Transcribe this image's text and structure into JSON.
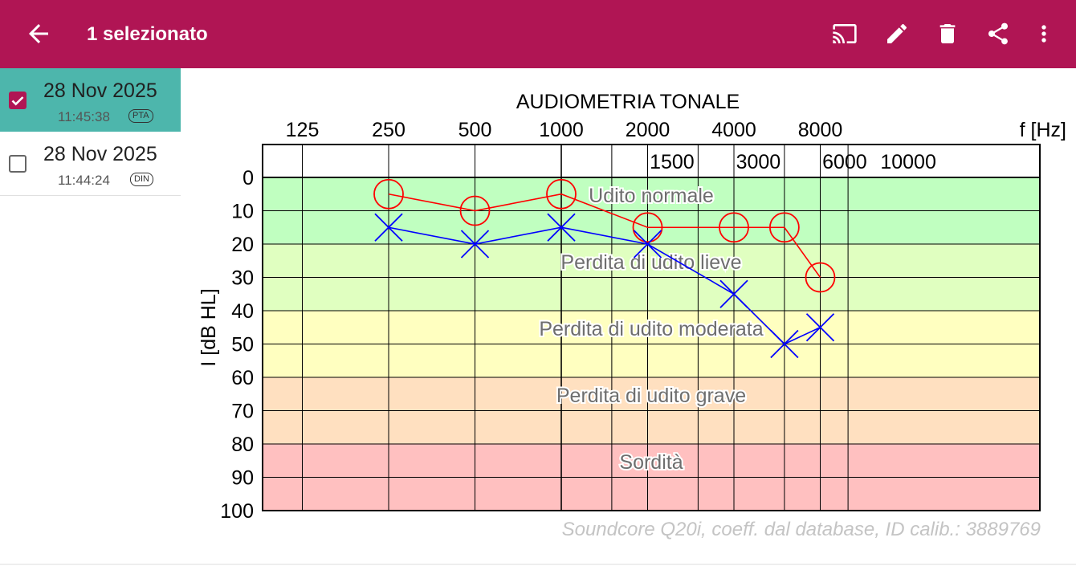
{
  "appbar": {
    "title": "1 selezionato",
    "color": "#b01554",
    "icons": [
      "arrow-back-icon",
      "cast-icon",
      "edit-icon",
      "delete-icon",
      "share-icon",
      "more-vert-icon"
    ]
  },
  "list": {
    "items": [
      {
        "date": "28 Nov 2025",
        "time": "11:45:38",
        "badge": "PTA",
        "selected": true
      },
      {
        "date": "28 Nov 2025",
        "time": "11:44:24",
        "badge": "DIN",
        "selected": false
      }
    ]
  },
  "chart_data": {
    "type": "line",
    "title": "AUDIOMETRIA TONALE",
    "xlabel": "f [Hz]",
    "ylabel": "I [dB HL]",
    "x_scale": "log",
    "y_inverted": true,
    "ylim": [
      0,
      100
    ],
    "top_ticks": [
      "125",
      "250",
      "500",
      "1000",
      "2000",
      "4000",
      "8000"
    ],
    "bottom_ticks": [
      "1500",
      "3000",
      "6000",
      "10000"
    ],
    "y_ticks": [
      "0",
      "10",
      "20",
      "30",
      "40",
      "50",
      "60",
      "70",
      "80",
      "90",
      "100"
    ],
    "zones": [
      {
        "label": "Udito normale",
        "from": 0,
        "to": 20,
        "color": "#c0ffc0"
      },
      {
        "label": "Perdita di udito lieve",
        "from": 20,
        "to": 40,
        "color": "#e0ffc0"
      },
      {
        "label": "Perdita di udito moderata",
        "from": 40,
        "to": 60,
        "color": "#ffffc0"
      },
      {
        "label": "Perdita di udito grave",
        "from": 60,
        "to": 80,
        "color": "#ffe0c0"
      },
      {
        "label": "Sordità",
        "from": 80,
        "to": 100,
        "color": "#ffc0c0"
      }
    ],
    "series": [
      {
        "marker": "circle",
        "color": "#ff0000",
        "x": [
          250,
          500,
          1000,
          2000,
          4000,
          6000,
          8000
        ],
        "values": [
          5,
          10,
          5,
          15,
          15,
          15,
          30
        ]
      },
      {
        "marker": "cross",
        "color": "#0000ff",
        "x": [
          250,
          500,
          1000,
          2000,
          4000,
          6000,
          8000
        ],
        "values": [
          15,
          20,
          15,
          20,
          35,
          50,
          45
        ]
      }
    ],
    "footer": "Soundcore Q20i, coeff. dal database, ID calib.: 3889769"
  }
}
